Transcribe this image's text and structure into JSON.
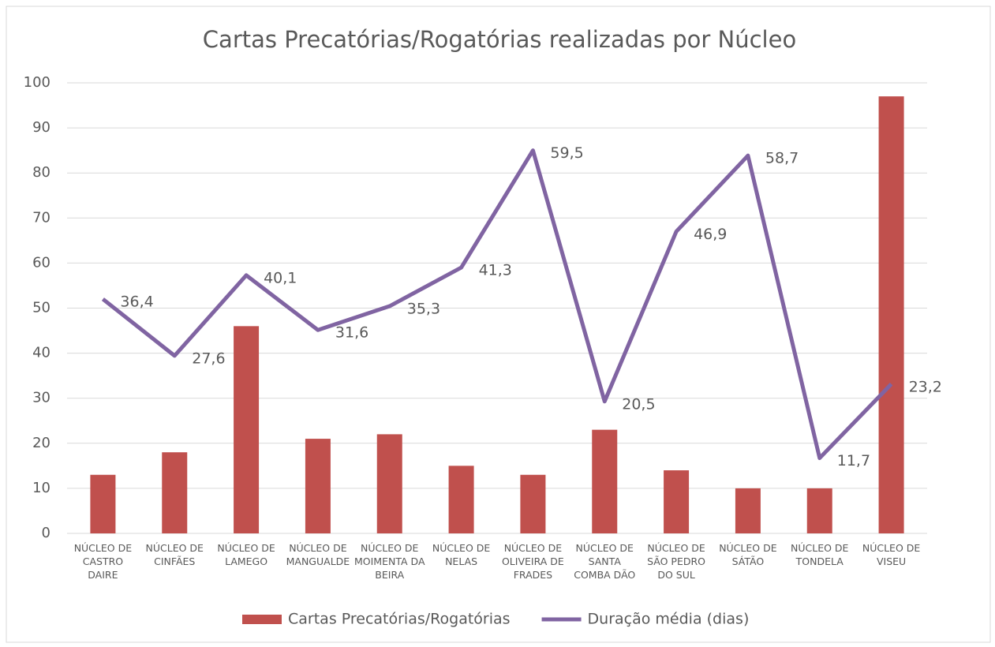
{
  "chart_data": {
    "type": "bar+line",
    "title": "Cartas Precatórias/Rogatórias realizadas por Núcleo",
    "categories": [
      "NÚCLEO DE CASTRO DAIRE",
      "NÚCLEO DE CINFÃES",
      "NÚCLEO DE LAMEGO",
      "NÚCLEO DE MANGUALDE",
      "NÚCLEO DE MOIMENTA DA BEIRA",
      "NÚCLEO DE NELAS",
      "NÚCLEO DE OLIVEIRA DE FRADES",
      "NÚCLEO DE SANTA COMBA DÃO",
      "NÚCLEO DE SÃO PEDRO DO SUL",
      "NÚCLEO DE SÁTÃO",
      "NÚCLEO DE TONDELA",
      "NÚCLEO DE VISEU"
    ],
    "series": [
      {
        "name": "Cartas Precatórias/Rogatórias",
        "type": "bar",
        "color": "#c0504d",
        "values": [
          13,
          18,
          46,
          21,
          22,
          15,
          13,
          23,
          14,
          10,
          10,
          97
        ]
      },
      {
        "name": "Duração média (dias)",
        "type": "line",
        "axis": "y2",
        "color": "#8064a2",
        "values": [
          36.4,
          27.6,
          40.1,
          31.6,
          35.3,
          41.3,
          59.5,
          20.5,
          46.9,
          58.7,
          11.7,
          23.2
        ],
        "value_labels": [
          "36,4",
          "27,6",
          "40,1",
          "31,6",
          "35,3",
          "41,3",
          "59,5",
          "20,5",
          "46,9",
          "58,7",
          "11,7",
          "23,2"
        ]
      }
    ],
    "ylim": [
      0,
      100
    ],
    "yticks": [
      0,
      10,
      20,
      30,
      40,
      50,
      60,
      70,
      80,
      90,
      100
    ],
    "y2lim": [
      0,
      70
    ],
    "grid": true,
    "legend": "bottom"
  }
}
